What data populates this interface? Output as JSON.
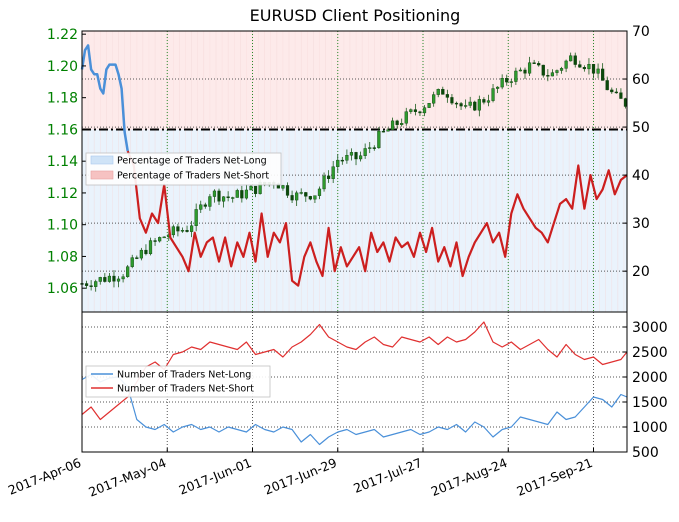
{
  "chart_data": [
    {
      "type": "line",
      "panel": "top",
      "title": "EURUSD Client Positioning",
      "x_tick_labels": [
        "2017-Apr-06",
        "2017-May-04",
        "2017-Jun-01",
        "2017-Jun-29",
        "2017-Jul-27",
        "2017-Aug-24",
        "2017-Sep-21"
      ],
      "x_range_days": [
        0,
        179
      ],
      "left_axis": {
        "ticks": [
          1.06,
          1.08,
          1.1,
          1.12,
          1.14,
          1.16,
          1.18,
          1.2,
          1.22
        ],
        "tick_labels": [
          "1.06",
          "1.08",
          "1.10",
          "1.12",
          "1.14",
          "1.16",
          "1.18",
          "1.20",
          "1.22"
        ],
        "ylim": [
          1.045,
          1.222
        ],
        "color": "#008000"
      },
      "right_axis": {
        "ticks": [
          20,
          30,
          40,
          50,
          60,
          70
        ],
        "tick_labels": [
          "20",
          "30",
          "40",
          "50",
          "60",
          "70"
        ],
        "ylim": [
          11.5,
          70
        ]
      },
      "reference_line": {
        "axis": "right",
        "value": 49.5,
        "style": "dash-dot",
        "color": "#000000"
      },
      "legend": {
        "placement": "middle-left",
        "entries": [
          "Percentage of Traders Net-Long",
          "Percentage of Traders Net-Short"
        ],
        "colors": [
          "#cfe3f7",
          "#f6c2c2"
        ]
      },
      "grid": true,
      "series": [
        {
          "name": "EURUSD",
          "axis": "left",
          "style": "candlestick",
          "color": "#008000",
          "x": [
            0,
            7,
            14,
            21,
            28,
            35,
            42,
            49,
            56,
            63,
            70,
            77,
            84,
            91,
            98,
            105,
            112,
            119,
            126,
            133,
            140,
            147,
            154,
            161,
            168,
            175,
            179
          ],
          "values": [
            1.063,
            1.066,
            1.07,
            1.085,
            1.094,
            1.098,
            1.12,
            1.117,
            1.122,
            1.128,
            1.118,
            1.12,
            1.141,
            1.142,
            1.156,
            1.166,
            1.175,
            1.185,
            1.172,
            1.18,
            1.192,
            1.2,
            1.194,
            1.206,
            1.198,
            1.18,
            1.176
          ]
        },
        {
          "name": "Percentage of Traders Net-Long",
          "axis": "right",
          "color": "#4a90d9",
          "x": [
            0,
            1,
            2,
            3,
            4,
            5,
            6,
            7,
            8,
            9,
            10,
            11,
            12,
            13,
            14,
            15
          ],
          "values": [
            62,
            66,
            67,
            62,
            61,
            61,
            58,
            57,
            62,
            63,
            63,
            63,
            61,
            58,
            49,
            45
          ]
        },
        {
          "name": "Percentage of Traders Net-Short",
          "axis": "right",
          "color": "#cc1f1f",
          "x": [
            15,
            17,
            19,
            21,
            23,
            25,
            27,
            29,
            31,
            33,
            35,
            37,
            39,
            41,
            43,
            45,
            47,
            49,
            51,
            53,
            55,
            57,
            59,
            61,
            63,
            65,
            67,
            69,
            71,
            73,
            75,
            77,
            79,
            81,
            83,
            85,
            87,
            89,
            91,
            93,
            95,
            97,
            99,
            101,
            103,
            105,
            107,
            109,
            111,
            113,
            115,
            117,
            119,
            121,
            123,
            125,
            127,
            129,
            131,
            133,
            135,
            137,
            139,
            141,
            143,
            145,
            147,
            149,
            151,
            153,
            155,
            157,
            159,
            161,
            163,
            165,
            167,
            169,
            171,
            173,
            175,
            177,
            179
          ],
          "values": [
            45,
            42,
            31,
            28,
            32,
            30,
            38,
            27,
            25,
            23,
            20,
            28,
            23,
            26,
            27,
            22,
            27,
            21,
            26,
            23,
            28,
            22,
            32,
            23,
            28,
            26,
            30,
            18,
            17,
            23,
            26,
            22,
            19,
            29,
            20,
            25,
            21,
            23,
            25,
            20,
            28,
            24,
            26,
            22,
            27,
            25,
            26,
            23,
            28,
            24,
            29,
            22,
            25,
            21,
            26,
            19,
            23,
            26,
            28,
            30,
            26,
            28,
            23,
            32,
            36,
            33,
            31,
            29,
            28,
            26,
            30,
            34,
            35,
            33,
            42,
            33,
            40,
            35,
            37,
            41,
            36,
            39,
            40
          ]
        }
      ]
    },
    {
      "type": "line",
      "panel": "bottom",
      "right_axis": {
        "ticks": [
          500,
          1000,
          1500,
          2000,
          2500,
          3000
        ],
        "tick_labels": [
          "500",
          "1000",
          "1500",
          "2000",
          "2500",
          "3000"
        ],
        "ylim": [
          500,
          3300
        ]
      },
      "legend": {
        "placement": "upper-left",
        "entries": [
          "Number of Traders Net-Long",
          "Number of Traders Net-Short"
        ]
      },
      "grid": true,
      "series": [
        {
          "name": "Number of Traders Net-Long",
          "color": "#4a90d9",
          "x": [
            0,
            3,
            6,
            9,
            12,
            15,
            18,
            21,
            24,
            27,
            30,
            33,
            36,
            39,
            42,
            45,
            48,
            51,
            54,
            57,
            60,
            63,
            66,
            69,
            72,
            75,
            78,
            81,
            84,
            87,
            90,
            93,
            96,
            99,
            102,
            105,
            108,
            111,
            114,
            117,
            120,
            123,
            126,
            129,
            132,
            135,
            138,
            141,
            144,
            147,
            150,
            153,
            156,
            159,
            162,
            165,
            168,
            171,
            174,
            177,
            179
          ],
          "values": [
            1950,
            2050,
            1900,
            1980,
            2000,
            1800,
            1150,
            1000,
            950,
            1050,
            900,
            1000,
            1050,
            950,
            1000,
            900,
            1000,
            950,
            900,
            1050,
            950,
            900,
            1000,
            950,
            700,
            850,
            650,
            800,
            900,
            950,
            850,
            900,
            950,
            800,
            850,
            900,
            950,
            850,
            900,
            1000,
            950,
            1050,
            900,
            1100,
            1000,
            800,
            950,
            1000,
            1200,
            1150,
            1100,
            1050,
            1300,
            1150,
            1200,
            1400,
            1600,
            1550,
            1400,
            1650,
            1600
          ]
        },
        {
          "name": "Number of Traders Net-Short",
          "color": "#e03030",
          "x": [
            0,
            3,
            6,
            9,
            12,
            15,
            18,
            21,
            24,
            27,
            30,
            33,
            36,
            39,
            42,
            45,
            48,
            51,
            54,
            57,
            60,
            63,
            66,
            69,
            72,
            75,
            78,
            81,
            84,
            87,
            90,
            93,
            96,
            99,
            102,
            105,
            108,
            111,
            114,
            117,
            120,
            123,
            126,
            129,
            132,
            135,
            138,
            141,
            144,
            147,
            150,
            153,
            156,
            159,
            162,
            165,
            168,
            171,
            174,
            177,
            179
          ],
          "values": [
            1250,
            1400,
            1150,
            1300,
            1450,
            1600,
            1900,
            2200,
            2300,
            2150,
            2450,
            2500,
            2600,
            2550,
            2700,
            2650,
            2600,
            2550,
            2700,
            2450,
            2500,
            2550,
            2400,
            2600,
            2700,
            2850,
            3050,
            2800,
            2700,
            2600,
            2550,
            2700,
            2800,
            2650,
            2600,
            2800,
            2750,
            2700,
            2800,
            2650,
            2800,
            2700,
            2750,
            2900,
            3100,
            2700,
            2600,
            2700,
            2550,
            2650,
            2750,
            2550,
            2400,
            2650,
            2450,
            2350,
            2400,
            2250,
            2300,
            2350,
            2500
          ]
        }
      ]
    }
  ]
}
